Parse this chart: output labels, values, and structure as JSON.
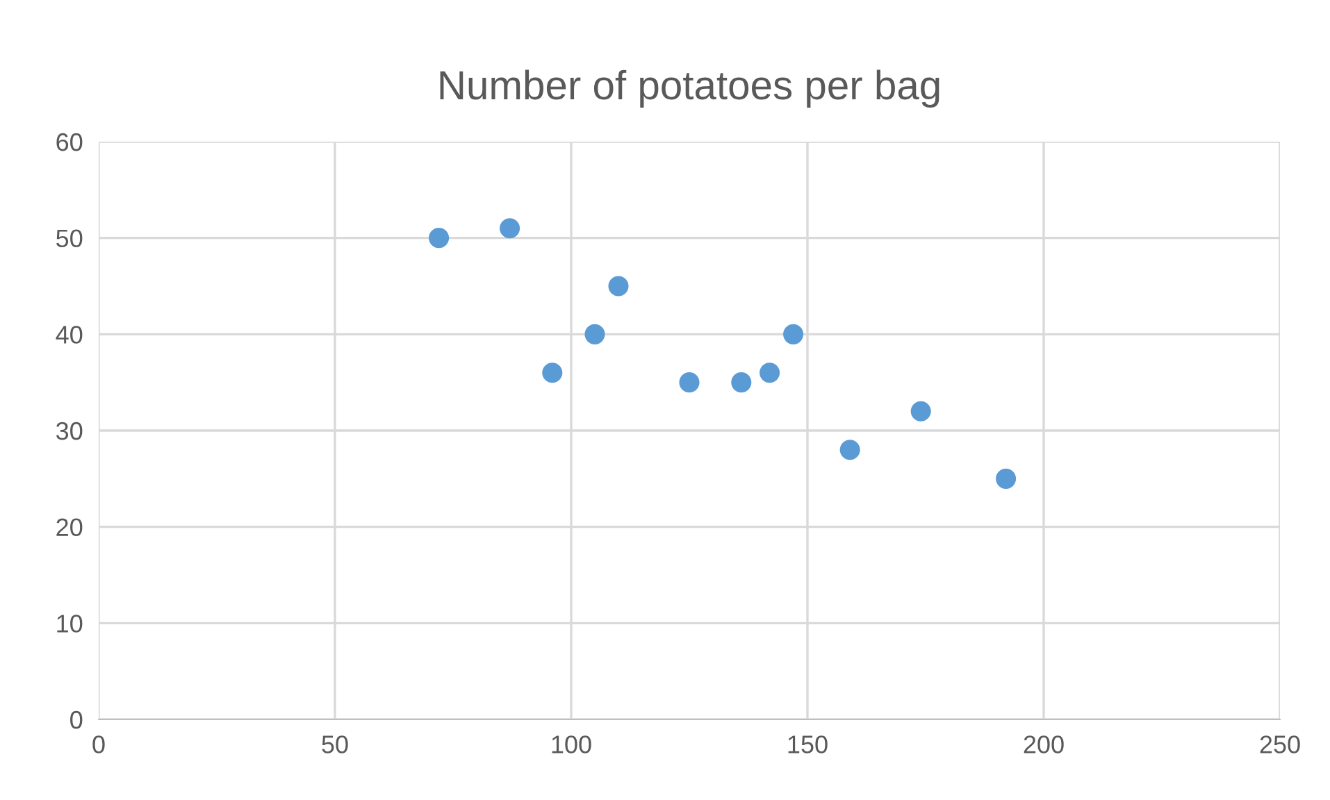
{
  "chart_data": {
    "type": "scatter",
    "title": "Number of potatoes per bag",
    "x": [
      72,
      87,
      96,
      105,
      110,
      125,
      136,
      142,
      147,
      159,
      174,
      192
    ],
    "values": [
      50,
      51,
      36,
      40,
      45,
      35,
      35,
      36,
      40,
      28,
      32,
      25
    ],
    "color": "#5b9bd5",
    "marker": "circle",
    "xlim": [
      0,
      250
    ],
    "xticks": [
      0,
      50,
      100,
      150,
      200,
      250
    ],
    "ylim": [
      0,
      60
    ],
    "yticks": [
      0,
      10,
      20,
      30,
      40,
      50,
      60
    ],
    "grid": true,
    "legend": false
  }
}
